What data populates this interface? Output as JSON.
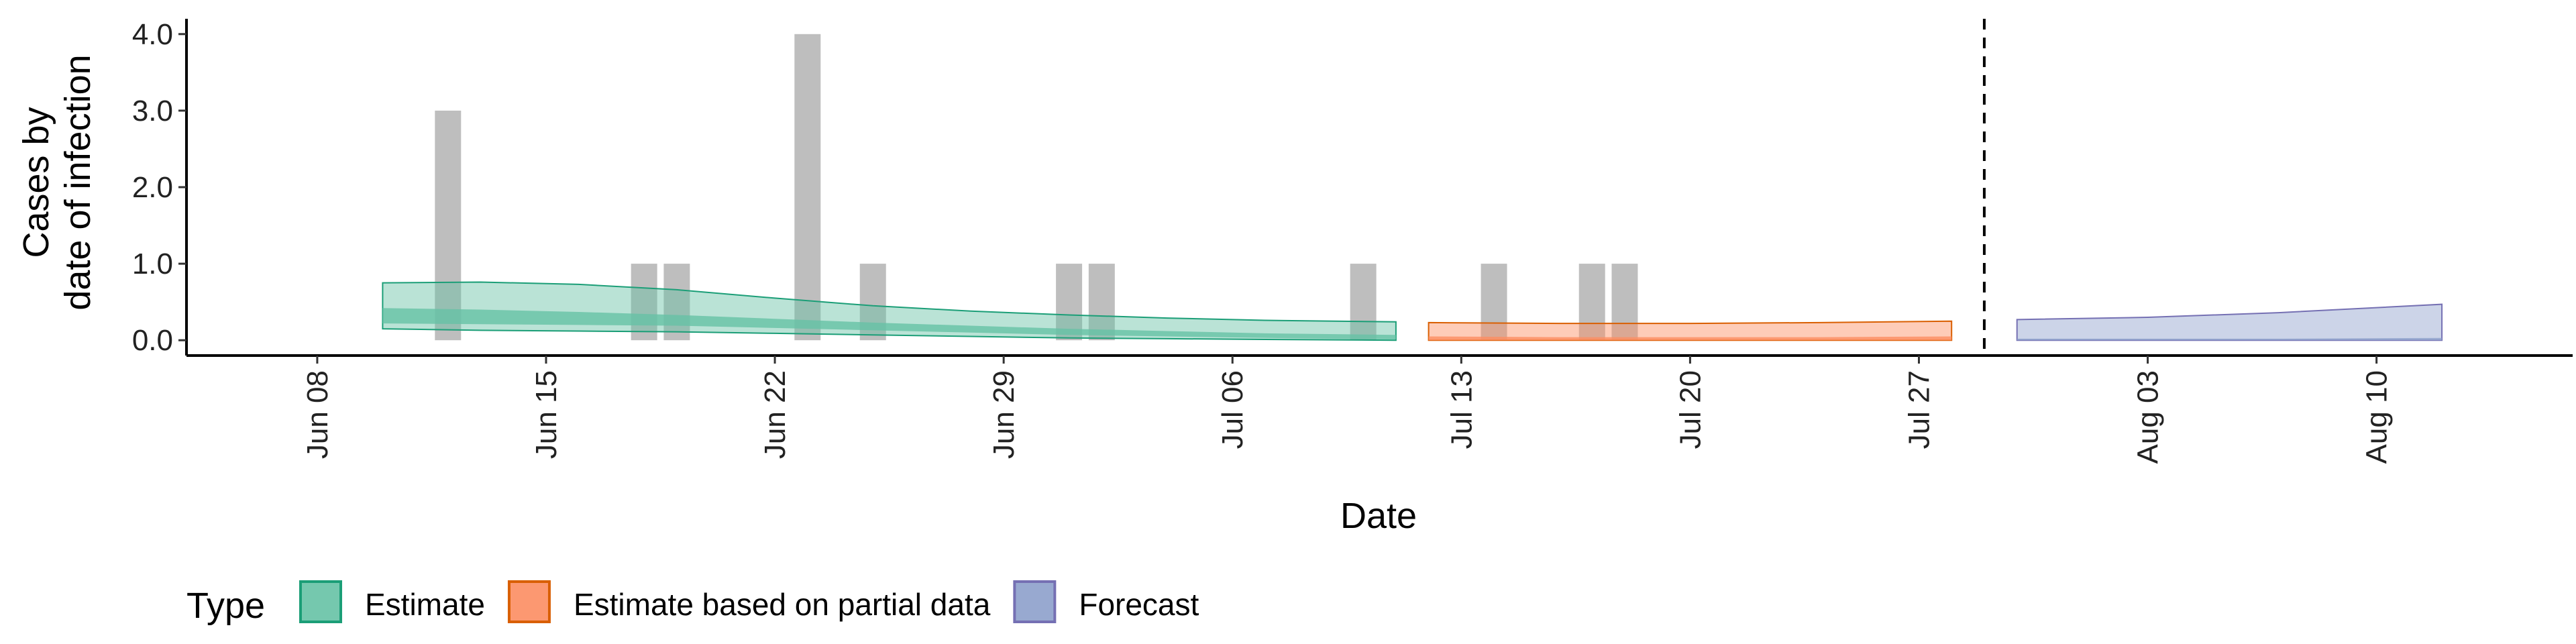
{
  "chart_data": {
    "type": "area",
    "xlabel": "Date",
    "ylabel": [
      "Cases by",
      "date of infection"
    ],
    "ylim": [
      -0.2,
      4.2
    ],
    "yticks": [
      0.0,
      1.0,
      2.0,
      3.0,
      4.0
    ],
    "ytick_labels": [
      "0.0",
      "1.0",
      "2.0",
      "3.0",
      "4.0"
    ],
    "xlim": [
      "2020-06-04",
      "2020-08-16"
    ],
    "xticks": [
      "2020-06-08",
      "2020-06-15",
      "2020-06-22",
      "2020-06-29",
      "2020-07-06",
      "2020-07-13",
      "2020-07-20",
      "2020-07-27",
      "2020-08-03",
      "2020-08-10"
    ],
    "xtick_labels": [
      "Jun 08",
      "Jun 15",
      "Jun 22",
      "Jun 29",
      "Jul 06",
      "Jul 13",
      "Jul 20",
      "Jul 27",
      "Aug 03",
      "Aug 10"
    ],
    "forecast_date": "2020-07-29",
    "reported_cases": [
      {
        "date": "2020-06-12",
        "value": 3
      },
      {
        "date": "2020-06-18",
        "value": 1
      },
      {
        "date": "2020-06-19",
        "value": 1
      },
      {
        "date": "2020-06-23",
        "value": 4
      },
      {
        "date": "2020-06-25",
        "value": 1
      },
      {
        "date": "2020-07-01",
        "value": 1
      },
      {
        "date": "2020-07-02",
        "value": 1
      },
      {
        "date": "2020-07-10",
        "value": 1
      },
      {
        "date": "2020-07-14",
        "value": 1
      },
      {
        "date": "2020-07-17",
        "value": 1
      },
      {
        "date": "2020-07-18",
        "value": 1
      }
    ],
    "bar_color": "#bebebe",
    "legend_title": "Type",
    "legend_position": "bottom",
    "series": [
      {
        "name": "Estimate",
        "fill": "#66c2a5",
        "stroke": "#1b9e77",
        "x": [
          "2020-06-10",
          "2020-06-13",
          "2020-06-16",
          "2020-06-19",
          "2020-06-22",
          "2020-06-25",
          "2020-06-28",
          "2020-07-01",
          "2020-07-04",
          "2020-07-07",
          "2020-07-11"
        ],
        "outer_upper": [
          0.75,
          0.76,
          0.73,
          0.66,
          0.55,
          0.45,
          0.38,
          0.33,
          0.29,
          0.26,
          0.24
        ],
        "outer_lower": [
          0.15,
          0.13,
          0.12,
          0.11,
          0.09,
          0.07,
          0.05,
          0.03,
          0.02,
          0.01,
          0.0
        ],
        "inner_upper": [
          0.42,
          0.4,
          0.37,
          0.33,
          0.28,
          0.23,
          0.19,
          0.15,
          0.12,
          0.09,
          0.07
        ],
        "inner_lower": [
          0.22,
          0.21,
          0.2,
          0.19,
          0.16,
          0.13,
          0.1,
          0.07,
          0.05,
          0.03,
          0.01
        ]
      },
      {
        "name": "Estimate based on partial data",
        "fill": "#fc8d62",
        "stroke": "#d95f02",
        "x": [
          "2020-07-12",
          "2020-07-16",
          "2020-07-20",
          "2020-07-24",
          "2020-07-28"
        ],
        "outer_upper": [
          0.23,
          0.22,
          0.22,
          0.23,
          0.25
        ],
        "outer_lower": [
          0.0,
          0.0,
          0.0,
          0.0,
          0.0
        ],
        "inner_upper": [
          0.05,
          0.04,
          0.04,
          0.04,
          0.05
        ],
        "inner_lower": [
          0.0,
          0.0,
          0.0,
          0.0,
          0.0
        ]
      },
      {
        "name": "Forecast",
        "fill": "#8da0cb",
        "stroke": "#7570b3",
        "x": [
          "2020-07-30",
          "2020-08-03",
          "2020-08-07",
          "2020-08-12"
        ],
        "outer_upper": [
          0.27,
          0.3,
          0.36,
          0.47
        ],
        "outer_lower": [
          0.0,
          0.0,
          0.0,
          0.0
        ],
        "inner_upper": [
          0.02,
          0.02,
          0.02,
          0.03
        ],
        "inner_lower": [
          0.0,
          0.0,
          0.0,
          0.0
        ]
      }
    ]
  }
}
